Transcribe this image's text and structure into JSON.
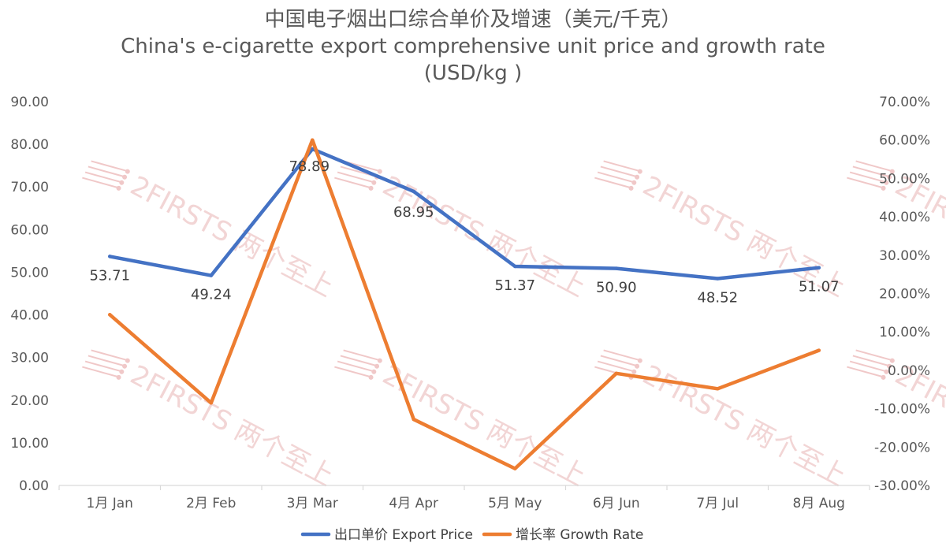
{
  "chart_data": {
    "type": "line",
    "title": "中国电子烟出口综合单价及增速（美元/千克）",
    "subtitle_lines": [
      "China's e-cigarette export comprehensive unit price and growth rate",
      "(USD/kg )"
    ],
    "categories": [
      "1月 Jan",
      "2月 Feb",
      "3月 Mar",
      "4月 Apr",
      "5月 May",
      "6月 Jun",
      "7月 Jul",
      "8月 Aug"
    ],
    "series": [
      {
        "name": "出口单价 Export Price",
        "axis": "left",
        "color": "#4472C4",
        "values": [
          53.71,
          49.24,
          78.89,
          68.95,
          51.37,
          50.9,
          48.52,
          51.07
        ],
        "labels": [
          "53.71",
          "49.24",
          "78.89",
          "68.95",
          "51.37",
          "50.90",
          "48.52",
          "51.07"
        ]
      },
      {
        "name": "增长率 Growth Rate",
        "axis": "right",
        "color": "#ED7D31",
        "values": [
          14.5,
          -8.5,
          60.0,
          -12.8,
          -25.6,
          -0.8,
          -4.8,
          5.2
        ]
      }
    ],
    "y_left": {
      "min": 0,
      "max": 90,
      "step": 10,
      "ticks": [
        "0.00",
        "10.00",
        "20.00",
        "30.00",
        "40.00",
        "50.00",
        "60.00",
        "70.00",
        "80.00",
        "90.00"
      ]
    },
    "y_right": {
      "min": -30,
      "max": 70,
      "step": 10,
      "ticks": [
        "-30.00%",
        "-20.00%",
        "-10.00%",
        "0.00%",
        "10.00%",
        "20.00%",
        "30.00%",
        "40.00%",
        "50.00%",
        "60.00%",
        "70.00%"
      ]
    },
    "grid": false,
    "legend_position": "bottom",
    "watermark": "2FIRSTS 两个至上"
  }
}
